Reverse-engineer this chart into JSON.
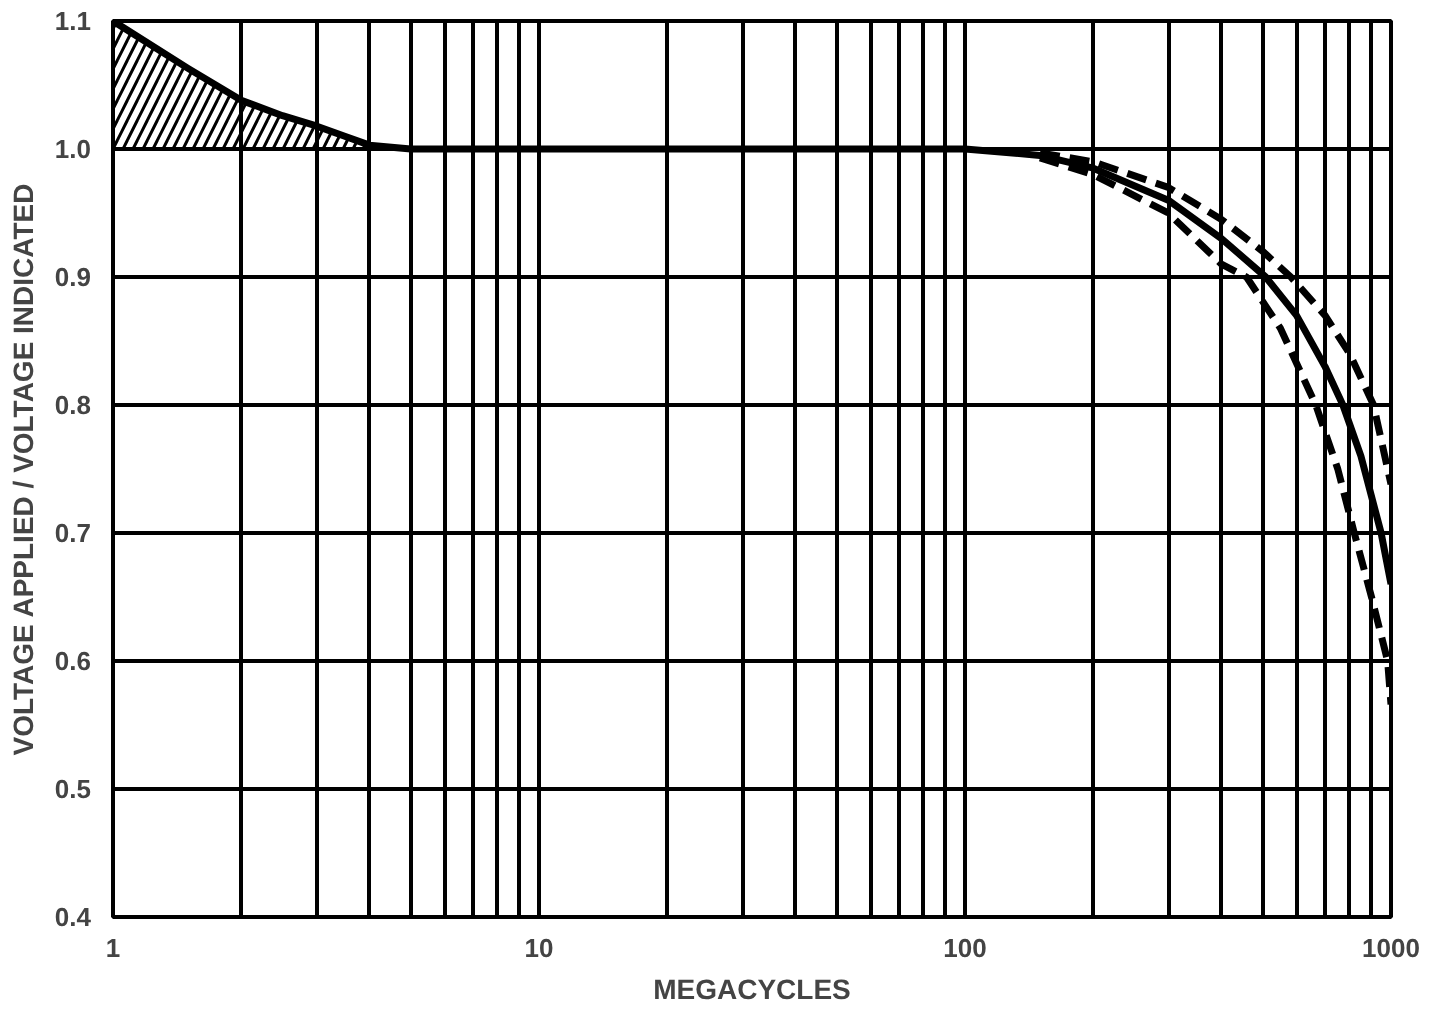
{
  "chart_data": {
    "type": "line",
    "xlabel": "MEGACYCLES",
    "ylabel": "VOLTAGE APPLIED / VOLTAGE INDICATED",
    "log": "x",
    "grid": true,
    "xlim": [
      1,
      1000
    ],
    "ylim": [
      0.4,
      1.1
    ],
    "xticks": [
      1,
      {
        "value": 2,
        "label": null
      },
      {
        "value": 3,
        "label": null
      },
      {
        "value": 4,
        "label": null
      },
      {
        "value": 5,
        "label": null
      },
      {
        "value": 6,
        "label": null
      },
      {
        "value": 7,
        "label": null
      },
      {
        "value": 8,
        "label": null
      },
      {
        "value": 9,
        "label": null
      },
      10,
      {
        "value": 20,
        "label": null
      },
      {
        "value": 30,
        "label": null
      },
      {
        "value": 40,
        "label": null
      },
      {
        "value": 50,
        "label": null
      },
      {
        "value": 60,
        "label": null
      },
      {
        "value": 70,
        "label": null
      },
      {
        "value": 80,
        "label": null
      },
      {
        "value": 90,
        "label": null
      },
      100,
      {
        "value": 200,
        "label": null
      },
      {
        "value": 300,
        "label": null
      },
      {
        "value": 400,
        "label": null
      },
      {
        "value": 500,
        "label": null
      },
      {
        "value": 600,
        "label": null
      },
      {
        "value": 700,
        "label": null
      },
      {
        "value": 800,
        "label": null
      },
      {
        "value": 900,
        "label": null
      },
      1000
    ],
    "yticks": [
      0.4,
      0.5,
      0.6,
      0.7,
      0.8,
      0.9,
      {
        "value": 1.0,
        "label": "1.0"
      },
      1.1
    ],
    "series": [
      {
        "color": "#000000",
        "line_style": "solid",
        "x": [
          1,
          1.5,
          2,
          2.5,
          3,
          3.5,
          4,
          5,
          10,
          100,
          150,
          200,
          300,
          400,
          508,
          600,
          700,
          771,
          850,
          948,
          1000
        ],
        "values": [
          1.1,
          1.063,
          1.038,
          1.026,
          1.018,
          1.01,
          1.003,
          1.0,
          1.0,
          1.0,
          0.995,
          0.985,
          0.96,
          0.93,
          0.9,
          0.87,
          0.83,
          0.8,
          0.76,
          0.7,
          0.66
        ],
        "lower": [
          1.0,
          1.0,
          1.0,
          1.0,
          1.0,
          1.0,
          1.0,
          1.0,
          null,
          null,
          null,
          null,
          null,
          null,
          null,
          null,
          null,
          null,
          null,
          null,
          null
        ],
        "upper": [
          1.1,
          1.063,
          1.038,
          1.026,
          1.018,
          1.01,
          1.003,
          1.0,
          null,
          null,
          null,
          null,
          null,
          null,
          null,
          null,
          null,
          null,
          null,
          null,
          null
        ]
      },
      {
        "color": "#000000",
        "line_style": "dashed",
        "x": [
          150,
          200,
          300,
          400,
          500,
          582,
          700,
          800,
          910,
          1000
        ],
        "values": [
          0.997,
          0.99,
          0.97,
          0.945,
          0.92,
          0.9,
          0.87,
          0.84,
          0.8,
          0.738
        ]
      },
      {
        "color": "#000000",
        "line_style": "dashed",
        "x": [
          150,
          200,
          300,
          400,
          458,
          550,
          666,
          750,
          820,
          900,
          982,
          1000
        ],
        "values": [
          0.993,
          0.98,
          0.95,
          0.91,
          0.9,
          0.86,
          0.8,
          0.75,
          0.7,
          0.65,
          0.6,
          0.566
        ]
      }
    ]
  }
}
